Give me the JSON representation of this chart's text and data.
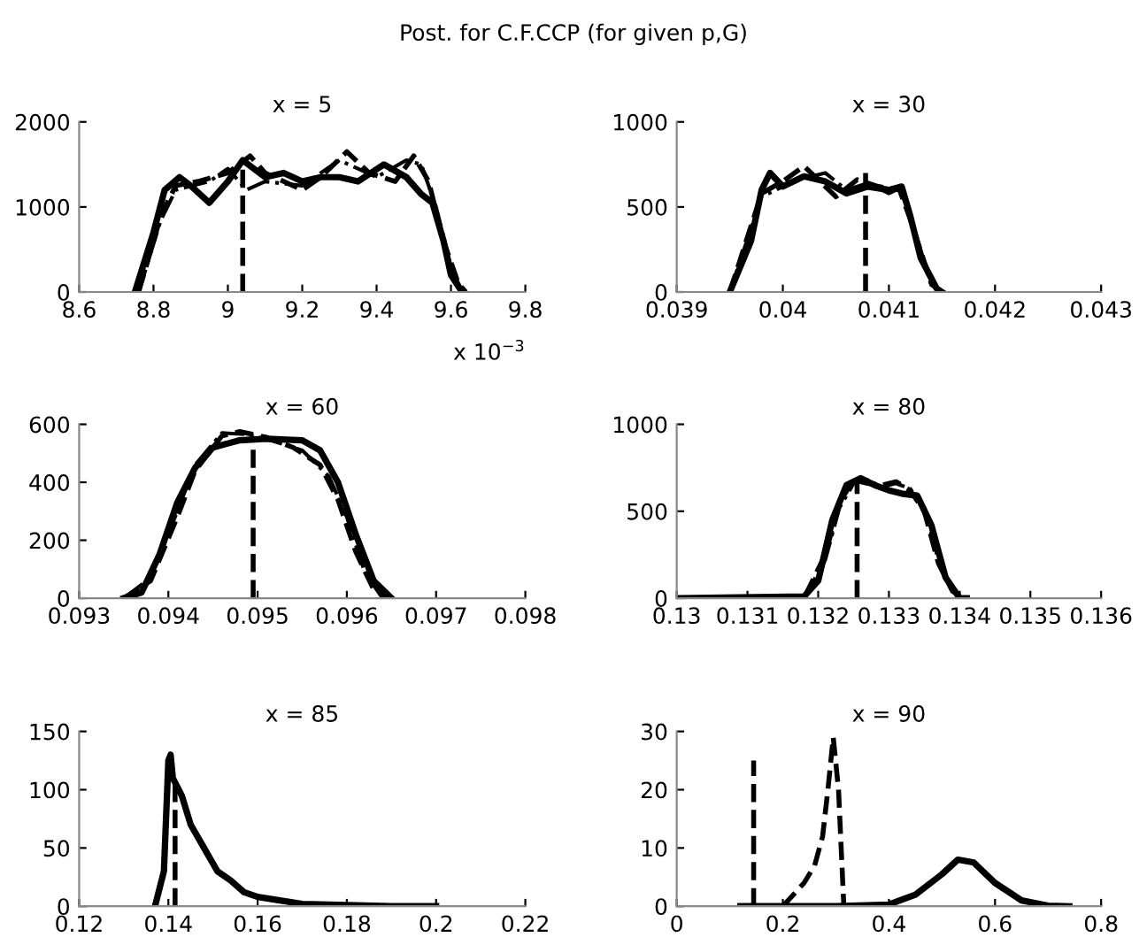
{
  "chart_data": [
    {
      "type": "line",
      "title": "x = 5",
      "annotations": [
        "Post. for C.F.CCP (for given p,G)",
        "x 10$^{−3}$"
      ],
      "xlim": [
        8.6,
        9.8
      ],
      "xticks": [
        8.6,
        8.8,
        9,
        9.2,
        9.4,
        9.6,
        9.8
      ],
      "ylim": [
        0,
        2000
      ],
      "yticks": [
        0,
        1000,
        2000
      ],
      "series": [
        {
          "color": "#000000",
          "line_style": "solid",
          "x": [
            8.75,
            8.8,
            8.83,
            8.87,
            8.9,
            8.95,
            9.0,
            9.04,
            9.1,
            9.15,
            9.2,
            9.25,
            9.3,
            9.35,
            9.42,
            9.48,
            9.52,
            9.55,
            9.58,
            9.6,
            9.63
          ],
          "values": [
            0,
            700,
            1200,
            1350,
            1250,
            1050,
            1300,
            1550,
            1350,
            1400,
            1300,
            1350,
            1350,
            1300,
            1500,
            1350,
            1150,
            1050,
            600,
            200,
            0
          ]
        },
        {
          "color": "#000000",
          "line_style": "dashed",
          "x": [
            8.76,
            8.82,
            8.86,
            8.92,
            9.0,
            9.06,
            9.1,
            9.2,
            9.25,
            9.32,
            9.38,
            9.45,
            9.5,
            9.54,
            9.58,
            9.62,
            9.64
          ],
          "values": [
            0,
            900,
            1250,
            1300,
            1400,
            1600,
            1400,
            1200,
            1350,
            1650,
            1400,
            1300,
            1600,
            1300,
            600,
            100,
            0
          ]
        },
        {
          "color": "#000000",
          "line_style": "dashdot",
          "x": [
            8.76,
            8.82,
            8.86,
            8.95,
            9.0,
            9.05,
            9.1,
            9.2,
            9.3,
            9.35,
            9.4,
            9.48,
            9.52,
            9.56,
            9.6,
            9.63
          ],
          "values": [
            0,
            850,
            1200,
            1300,
            1450,
            1200,
            1300,
            1250,
            1550,
            1450,
            1350,
            1550,
            1500,
            1000,
            300,
            0
          ]
        },
        {
          "color": "#000000",
          "line_style": "dashed",
          "x": [
            9.04,
            9.04
          ],
          "values": [
            0,
            1550
          ]
        }
      ]
    },
    {
      "type": "line",
      "title": "x = 30",
      "xlim": [
        0.039,
        0.043
      ],
      "xticks": [
        0.039,
        0.04,
        0.041,
        0.042,
        0.043
      ],
      "ylim": [
        0,
        1000
      ],
      "yticks": [
        0,
        500,
        1000
      ],
      "series": [
        {
          "color": "#000000",
          "line_style": "solid",
          "x": [
            0.0395,
            0.0397,
            0.0398,
            0.03988,
            0.04,
            0.0402,
            0.0404,
            0.0406,
            0.0408,
            0.041,
            0.04112,
            0.0412,
            0.0413,
            0.04145,
            0.0415
          ],
          "values": [
            0,
            300,
            600,
            700,
            620,
            680,
            650,
            580,
            620,
            600,
            620,
            450,
            200,
            20,
            0
          ]
        },
        {
          "color": "#000000",
          "line_style": "dashed",
          "x": [
            0.0395,
            0.0398,
            0.04,
            0.0402,
            0.0404,
            0.0405,
            0.0407,
            0.0409,
            0.0411,
            0.0412,
            0.0414,
            0.0415
          ],
          "values": [
            0,
            580,
            650,
            740,
            620,
            560,
            660,
            620,
            600,
            430,
            50,
            0
          ]
        },
        {
          "color": "#000000",
          "line_style": "dashdot",
          "x": [
            0.0395,
            0.0398,
            0.04,
            0.0402,
            0.0404,
            0.0406,
            0.0408,
            0.041,
            0.0411,
            0.0412,
            0.0414,
            0.0415
          ],
          "values": [
            0,
            560,
            620,
            670,
            700,
            600,
            640,
            580,
            610,
            450,
            40,
            0
          ]
        },
        {
          "color": "#000000",
          "line_style": "dashed",
          "x": [
            0.04078,
            0.04078
          ],
          "values": [
            0,
            700
          ]
        }
      ]
    },
    {
      "type": "line",
      "title": "x = 60",
      "xlim": [
        0.093,
        0.098
      ],
      "xticks": [
        0.093,
        0.094,
        0.095,
        0.096,
        0.097,
        0.098
      ],
      "ylim": [
        0,
        600
      ],
      "yticks": [
        0,
        200,
        400,
        600
      ],
      "series": [
        {
          "color": "#000000",
          "line_style": "solid",
          "x": [
            0.0935,
            0.0937,
            0.0939,
            0.0941,
            0.0943,
            0.0945,
            0.0948,
            0.0951,
            0.0955,
            0.0957,
            0.0959,
            0.0961,
            0.0963,
            0.0965
          ],
          "values": [
            0,
            20,
            150,
            330,
            450,
            520,
            545,
            550,
            545,
            510,
            400,
            220,
            60,
            0
          ]
        },
        {
          "color": "#000000",
          "line_style": "dashed",
          "x": [
            0.0935,
            0.0938,
            0.0941,
            0.0943,
            0.0946,
            0.0948,
            0.0951,
            0.0954,
            0.0957,
            0.0959,
            0.0961,
            0.0963,
            0.0965
          ],
          "values": [
            0,
            60,
            280,
            440,
            560,
            575,
            555,
            520,
            460,
            340,
            160,
            30,
            0
          ]
        },
        {
          "color": "#000000",
          "line_style": "dashdot",
          "x": [
            0.0935,
            0.0938,
            0.0941,
            0.0943,
            0.0946,
            0.0949,
            0.0952,
            0.0955,
            0.0958,
            0.096,
            0.0962,
            0.0964
          ],
          "values": [
            0,
            70,
            300,
            460,
            570,
            565,
            540,
            510,
            420,
            280,
            90,
            0
          ]
        },
        {
          "color": "#000000",
          "line_style": "dashed",
          "x": [
            0.09495,
            0.09495
          ],
          "values": [
            0,
            560
          ]
        }
      ]
    },
    {
      "type": "line",
      "title": "x = 80",
      "xlim": [
        0.13,
        0.136
      ],
      "xticks": [
        0.13,
        0.131,
        0.132,
        0.133,
        0.134,
        0.135,
        0.136
      ],
      "ylim": [
        0,
        1000
      ],
      "yticks": [
        0,
        500,
        1000
      ],
      "series": [
        {
          "color": "#000000",
          "line_style": "solid",
          "x": [
            0.13,
            0.1318,
            0.132,
            0.1322,
            0.1324,
            0.1326,
            0.1328,
            0.133,
            0.1332,
            0.1334,
            0.1336,
            0.1338,
            0.134,
            0.1341
          ],
          "values": [
            0,
            10,
            100,
            450,
            650,
            690,
            650,
            620,
            600,
            590,
            420,
            120,
            0,
            0
          ]
        },
        {
          "color": "#000000",
          "line_style": "dashed",
          "x": [
            0.13,
            0.1318,
            0.1321,
            0.1323,
            0.1325,
            0.1327,
            0.1329,
            0.1331,
            0.1333,
            0.1335,
            0.1337,
            0.1339,
            0.1341
          ],
          "values": [
            0,
            0,
            250,
            550,
            680,
            660,
            650,
            670,
            620,
            500,
            200,
            40,
            0
          ]
        },
        {
          "color": "#000000",
          "line_style": "dashdot",
          "x": [
            0.1318,
            0.1321,
            0.1323,
            0.1325,
            0.1327,
            0.1329,
            0.1331,
            0.1333,
            0.1335,
            0.1337,
            0.1339,
            0.1341
          ],
          "values": [
            0,
            220,
            520,
            660,
            680,
            640,
            660,
            630,
            520,
            220,
            30,
            0
          ]
        },
        {
          "color": "#000000",
          "line_style": "dashed",
          "x": [
            0.13255,
            0.13255
          ],
          "values": [
            0,
            660
          ]
        }
      ]
    },
    {
      "type": "line",
      "title": "x = 85",
      "xlim": [
        0.12,
        0.22
      ],
      "xticks": [
        0.12,
        0.14,
        0.16,
        0.18,
        0.2,
        0.22
      ],
      "ylim": [
        0,
        150
      ],
      "yticks": [
        0,
        50,
        100,
        150
      ],
      "series": [
        {
          "color": "#000000",
          "line_style": "solid",
          "x": [
            0.137,
            0.139,
            0.14,
            0.1405,
            0.141,
            0.143,
            0.145,
            0.148,
            0.151,
            0.154,
            0.157,
            0.16,
            0.165,
            0.17,
            0.18,
            0.19,
            0.2
          ],
          "values": [
            0,
            30,
            125,
            130,
            110,
            95,
            70,
            50,
            30,
            22,
            12,
            8,
            5,
            2,
            1,
            0,
            0
          ]
        },
        {
          "color": "#000000",
          "line_style": "dashed",
          "x": [
            0.1415,
            0.1415
          ],
          "values": [
            0,
            105
          ]
        }
      ]
    },
    {
      "type": "line",
      "title": "x = 90",
      "xlim": [
        0,
        0.8
      ],
      "xticks": [
        0,
        0.2,
        0.4,
        0.6,
        0.8
      ],
      "ylim": [
        0,
        30
      ],
      "yticks": [
        0,
        10,
        20,
        30
      ],
      "series": [
        {
          "color": "#000000",
          "line_style": "solid",
          "x": [
            0.12,
            0.3,
            0.4,
            0.45,
            0.5,
            0.53,
            0.56,
            0.6,
            0.65,
            0.7,
            0.74
          ],
          "values": [
            0,
            0,
            0.3,
            2,
            5.5,
            8,
            7.5,
            4,
            1,
            0.1,
            0
          ]
        },
        {
          "color": "#000000",
          "line_style": "dashed",
          "x": [
            0.2,
            0.22,
            0.24,
            0.26,
            0.275,
            0.285,
            0.295,
            0.305,
            0.315
          ],
          "values": [
            0,
            2,
            4,
            7,
            12,
            20,
            29,
            20,
            0
          ]
        },
        {
          "color": "#000000",
          "line_style": "dashed",
          "x": [
            0.145,
            0.145
          ],
          "values": [
            0,
            25
          ]
        }
      ]
    }
  ]
}
